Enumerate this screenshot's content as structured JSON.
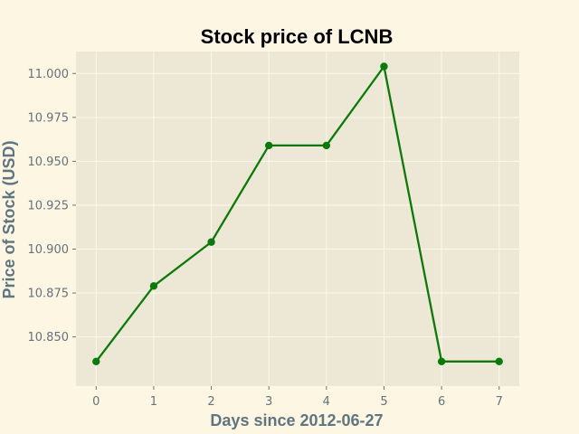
{
  "chart_data": {
    "type": "line",
    "title": "Stock price of LCNB",
    "xlabel": "Days since 2012-06-27",
    "ylabel": "Price of Stock (USD)",
    "x": [
      0,
      1,
      2,
      3,
      4,
      5,
      6,
      7
    ],
    "series": [
      {
        "values": [
          10.836,
          10.879,
          10.904,
          10.959,
          10.959,
          11.004,
          10.836,
          10.836
        ]
      }
    ],
    "xlim": [
      -0.35,
      7.35
    ],
    "ylim": [
      10.822,
      11.0125
    ],
    "xticks": [
      0,
      1,
      2,
      3,
      4,
      5,
      6,
      7
    ],
    "xtick_labels": [
      "0",
      "1",
      "2",
      "3",
      "4",
      "5",
      "6",
      "7"
    ],
    "yticks": [
      10.85,
      10.875,
      10.9,
      10.925,
      10.95,
      10.975,
      11.0
    ],
    "ytick_labels": [
      "10.850",
      "10.875",
      "10.900",
      "10.925",
      "10.950",
      "10.975",
      "11.000"
    ],
    "grid": true,
    "colors": {
      "figure_background": "#fcf6e3",
      "plot_background": "#ede8d5",
      "grid": "#fbf8ee",
      "line": "#0a7a0a",
      "marker": "#0a7a0a",
      "title": "#000000",
      "axis_label": "#5f7580",
      "tick_label": "#66737d"
    },
    "marker": "circle"
  }
}
